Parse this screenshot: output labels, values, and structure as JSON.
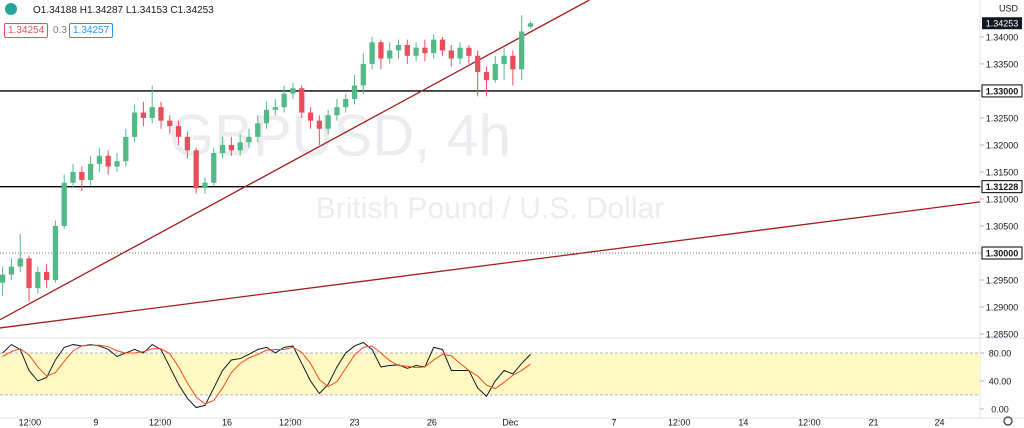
{
  "header": {
    "ohlc": [
      "O1.34188",
      "H1.34287",
      "L1.34153",
      "C1.34253"
    ],
    "bid": "1.34254",
    "spread": "0.3",
    "ask": "1.34257",
    "currency": "USD",
    "watermark": "GBPUSD, 4h",
    "description": "British Pound / U.S. Dollar"
  },
  "chart_data": [
    {
      "type": "candlestick",
      "up_color": "#53b987",
      "down_color": "#eb4d5c",
      "open": [
        1.2945,
        1.296,
        1.2975,
        1.299,
        1.2935,
        1.2965,
        1.295,
        1.305,
        1.313,
        1.315,
        1.3135,
        1.3165,
        1.318,
        1.316,
        1.317,
        1.3215,
        1.326,
        1.325,
        1.327,
        1.3245,
        1.3235,
        1.3215,
        1.319,
        1.312,
        1.313,
        1.3185,
        1.32,
        1.319,
        1.3205,
        1.3215,
        1.324,
        1.3265,
        1.327,
        1.3295,
        1.3305,
        1.326,
        1.3245,
        1.323,
        1.3255,
        1.327,
        1.3285,
        1.331,
        1.335,
        1.339,
        1.336,
        1.3375,
        1.3385,
        1.3365,
        1.338,
        1.337,
        1.3395,
        1.3375,
        1.336,
        1.338,
        1.3365,
        1.3335,
        1.332,
        1.335,
        1.3365,
        1.334,
        1.34188
      ],
      "high": [
        1.2975,
        1.299,
        1.3035,
        1.2995,
        1.2975,
        1.298,
        1.306,
        1.3145,
        1.3165,
        1.316,
        1.318,
        1.3195,
        1.319,
        1.3185,
        1.323,
        1.3275,
        1.328,
        1.331,
        1.328,
        1.3255,
        1.3245,
        1.3225,
        1.3195,
        1.314,
        1.3195,
        1.3215,
        1.3215,
        1.322,
        1.323,
        1.3255,
        1.328,
        1.3285,
        1.331,
        1.3315,
        1.331,
        1.327,
        1.3255,
        1.3265,
        1.3285,
        1.3295,
        1.333,
        1.337,
        1.34,
        1.3395,
        1.339,
        1.3395,
        1.3395,
        1.339,
        1.3395,
        1.3405,
        1.34,
        1.3385,
        1.339,
        1.3385,
        1.3375,
        1.3345,
        1.3365,
        1.338,
        1.3375,
        1.344,
        1.34287
      ],
      "low": [
        1.292,
        1.295,
        1.2965,
        1.291,
        1.2925,
        1.2935,
        1.2945,
        1.3045,
        1.312,
        1.3115,
        1.3125,
        1.315,
        1.3145,
        1.315,
        1.316,
        1.3205,
        1.3235,
        1.324,
        1.323,
        1.322,
        1.32,
        1.3175,
        1.311,
        1.311,
        1.3125,
        1.3175,
        1.318,
        1.318,
        1.3195,
        1.3205,
        1.323,
        1.3255,
        1.326,
        1.3285,
        1.325,
        1.323,
        1.32,
        1.322,
        1.3245,
        1.326,
        1.3275,
        1.3295,
        1.334,
        1.334,
        1.335,
        1.336,
        1.335,
        1.3355,
        1.3355,
        1.336,
        1.3365,
        1.3345,
        1.335,
        1.335,
        1.329,
        1.329,
        1.3315,
        1.332,
        1.331,
        1.332,
        1.34153
      ],
      "close": [
        1.296,
        1.2975,
        1.299,
        1.2935,
        1.2965,
        1.295,
        1.305,
        1.313,
        1.315,
        1.3135,
        1.3165,
        1.318,
        1.316,
        1.317,
        1.3215,
        1.326,
        1.325,
        1.327,
        1.3245,
        1.3235,
        1.3215,
        1.319,
        1.312,
        1.313,
        1.3185,
        1.32,
        1.319,
        1.3205,
        1.3215,
        1.324,
        1.3265,
        1.327,
        1.3295,
        1.3305,
        1.326,
        1.3245,
        1.323,
        1.3255,
        1.327,
        1.3285,
        1.331,
        1.335,
        1.339,
        1.336,
        1.3375,
        1.3385,
        1.3365,
        1.338,
        1.337,
        1.3395,
        1.3375,
        1.336,
        1.338,
        1.3365,
        1.3335,
        1.332,
        1.335,
        1.3365,
        1.334,
        1.341,
        1.34253
      ],
      "last_label": "1.34253",
      "xlim": [
        -0.3,
        111.1
      ],
      "ylim": [
        1.28427,
        1.34683
      ],
      "yticks": [
        {
          "value": 1.34,
          "label": "1.34000"
        },
        {
          "value": 1.335,
          "label": "1.33500"
        },
        {
          "value": 1.33,
          "label": "1.33000"
        },
        {
          "value": 1.325,
          "label": "1.32500"
        },
        {
          "value": 1.32,
          "label": "1.32000"
        },
        {
          "value": 1.315,
          "label": "1.31500"
        },
        {
          "value": 1.31228,
          "label": "1.31228"
        },
        {
          "value": 1.31,
          "label": "1.31000"
        },
        {
          "value": 1.305,
          "label": "1.30500"
        },
        {
          "value": 1.3,
          "label": "1.30000"
        },
        {
          "value": 1.295,
          "label": "1.29500"
        },
        {
          "value": 1.29,
          "label": "1.29000"
        },
        {
          "value": 1.285,
          "label": "1.28500"
        }
      ],
      "hlines": [
        {
          "value": 1.33,
          "style": "solid",
          "color": "#000000"
        },
        {
          "value": 1.31228,
          "style": "solid",
          "color": "#000000"
        },
        {
          "value": 1.3,
          "style": "dotted",
          "color": "#787b86"
        }
      ],
      "trendlines": [
        {
          "x": [
            -0.3,
            66.7
          ],
          "y": [
            1.28765,
            1.34683
          ],
          "color": "#a31b1b"
        },
        {
          "x": [
            -0.3,
            111.1
          ],
          "y": [
            1.28613,
            1.30946
          ],
          "color": "#a31b1b"
        }
      ]
    },
    {
      "type": "line",
      "xlim": [
        -0.3,
        111.1
      ],
      "ylim": [
        -13,
        101.4
      ],
      "band": [
        20,
        80
      ],
      "band_color": "#fff9c4",
      "yticks": [
        {
          "value": 80,
          "label": "80.00"
        },
        {
          "value": 40,
          "label": "40.00"
        },
        {
          "value": 0,
          "label": "0.00"
        }
      ],
      "xticks": [
        {
          "value": 3.1,
          "label": "12:00"
        },
        {
          "value": 10.6,
          "label": "9"
        },
        {
          "value": 17.9,
          "label": "12:00"
        },
        {
          "value": 25.5,
          "label": "16"
        },
        {
          "value": 32.7,
          "label": "12:00"
        },
        {
          "value": 40.0,
          "label": "23"
        },
        {
          "value": 48.8,
          "label": "26"
        },
        {
          "value": 57.7,
          "label": "Dec"
        },
        {
          "value": 69.5,
          "label": "7"
        },
        {
          "value": 76.9,
          "label": "12:00"
        },
        {
          "value": 84.2,
          "label": "14"
        },
        {
          "value": 91.7,
          "label": "12:00"
        },
        {
          "value": 99.0,
          "label": "21"
        },
        {
          "value": 106.5,
          "label": "24"
        }
      ],
      "series": [
        {
          "color": "#131722",
          "values": [
            80,
            92,
            85,
            55,
            40,
            45,
            70,
            88,
            92,
            90,
            92,
            90,
            85,
            75,
            80,
            85,
            80,
            92,
            85,
            60,
            35,
            15,
            2,
            5,
            30,
            55,
            70,
            72,
            78,
            85,
            88,
            80,
            88,
            90,
            65,
            40,
            22,
            35,
            60,
            80,
            90,
            95,
            85,
            60,
            62,
            63,
            58,
            62,
            60,
            88,
            85,
            55,
            55,
            55,
            30,
            18,
            40,
            55,
            50,
            65,
            78
          ]
        },
        {
          "color": "#f44a1f",
          "values": [
            75,
            82,
            86,
            77,
            60,
            47,
            52,
            68,
            83,
            90,
            91,
            91,
            89,
            83,
            80,
            80,
            82,
            86,
            86,
            79,
            60,
            37,
            17,
            7,
            12,
            30,
            52,
            65,
            73,
            78,
            84,
            85,
            85,
            88,
            81,
            65,
            42,
            32,
            39,
            58,
            77,
            88,
            90,
            80,
            69,
            62,
            61,
            59,
            60,
            70,
            78,
            76,
            65,
            55,
            47,
            34,
            29,
            38,
            48,
            55,
            64
          ]
        }
      ]
    }
  ]
}
